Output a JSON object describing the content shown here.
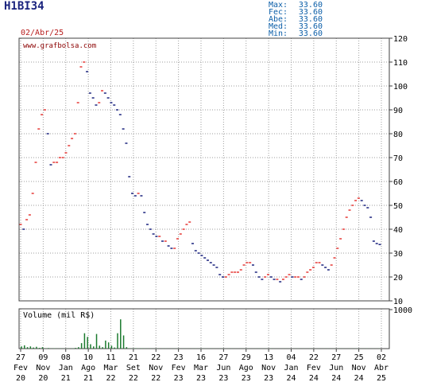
{
  "header": {
    "ticker": "H1BI34",
    "date": "02/Abr/25",
    "stats": [
      {
        "label": "Max:",
        "value": "33.60"
      },
      {
        "label": "Fec:",
        "value": "33.60"
      },
      {
        "label": "Abe:",
        "value": "33.60"
      },
      {
        "label": "Med:",
        "value": "33.60"
      },
      {
        "label": "Min:",
        "value": "33.60"
      }
    ]
  },
  "colors": {
    "up": "#e53935",
    "down": "#1a237e",
    "grid": "#9e9e9e",
    "frame": "#404040",
    "volume": "#1b7a2e",
    "watermark": "#8b0000"
  },
  "chart_data": [
    {
      "type": "line",
      "watermark": "www.grafbolsa.com",
      "ylim": [
        10,
        120
      ],
      "yticks": [
        10,
        20,
        30,
        40,
        50,
        60,
        70,
        80,
        90,
        100,
        110,
        120
      ],
      "grid": true,
      "x_ticks": [
        {
          "top": "27",
          "bottom": "Fev",
          "year": "20"
        },
        {
          "top": "09",
          "bottom": "Nov",
          "year": "20"
        },
        {
          "top": "08",
          "bottom": "Jan",
          "year": "21"
        },
        {
          "top": "10",
          "bottom": "Ago",
          "year": "21"
        },
        {
          "top": "11",
          "bottom": "Mar",
          "year": "22"
        },
        {
          "top": "21",
          "bottom": "Set",
          "year": "22"
        },
        {
          "top": "22",
          "bottom": "Nov",
          "year": "22"
        },
        {
          "top": "23",
          "bottom": "Fev",
          "year": "23"
        },
        {
          "top": "16",
          "bottom": "Mar",
          "year": "23"
        },
        {
          "top": "27",
          "bottom": "Jun",
          "year": "23"
        },
        {
          "top": "29",
          "bottom": "Ago",
          "year": "23"
        },
        {
          "top": "13",
          "bottom": "Nov",
          "year": "23"
        },
        {
          "top": "04",
          "bottom": "Jan",
          "year": "24"
        },
        {
          "top": "22",
          "bottom": "Fev",
          "year": "24"
        },
        {
          "top": "27",
          "bottom": "Jun",
          "year": "24"
        },
        {
          "top": "25",
          "bottom": "Nov",
          "year": "24"
        },
        {
          "top": "02",
          "bottom": "Abr",
          "year": "25"
        }
      ],
      "series": [
        {
          "values": [
            42,
            40,
            44,
            46,
            55,
            68,
            82,
            88,
            90,
            80,
            67,
            68,
            68,
            70,
            70,
            72,
            75,
            78,
            80,
            93,
            108,
            110,
            106,
            97,
            95,
            92,
            93,
            98,
            97,
            95,
            93,
            92,
            90,
            88,
            82,
            76,
            62,
            55,
            54,
            55,
            54,
            47,
            42,
            40,
            38,
            37,
            37,
            35,
            35,
            33,
            32,
            32,
            36,
            38,
            40,
            42,
            43,
            34,
            31,
            30,
            29,
            28,
            27,
            26,
            25,
            24,
            21,
            20,
            20,
            21,
            22,
            22,
            22,
            23,
            25,
            26,
            26,
            25,
            22,
            20,
            19,
            20,
            21,
            20,
            19,
            19,
            18,
            19,
            20,
            21,
            20,
            20,
            20,
            19,
            20,
            22,
            23,
            24,
            26,
            26,
            25,
            24,
            23,
            25,
            28,
            32,
            36,
            40,
            45,
            48,
            50,
            52,
            53,
            52,
            50,
            49,
            45,
            35,
            34,
            33.6
          ]
        }
      ]
    },
    {
      "type": "bar",
      "title": "Volume (mil R$)",
      "ylim": [
        0,
        1000
      ],
      "yticks": [
        1000
      ],
      "values": [
        60,
        90,
        40,
        60,
        30,
        50,
        20,
        40,
        10,
        15,
        5,
        10,
        5,
        8,
        5,
        6,
        5,
        10,
        20,
        40,
        150,
        420,
        320,
        120,
        60,
        400,
        80,
        40,
        220,
        170,
        80,
        30,
        420,
        800,
        360,
        40,
        10,
        8,
        12,
        6,
        10,
        8,
        5,
        6,
        4,
        6,
        4,
        5,
        6,
        3,
        4,
        5,
        4,
        3,
        5,
        4,
        3,
        4,
        6,
        3,
        5,
        4,
        3,
        5,
        4,
        3,
        4,
        5,
        3,
        4,
        5,
        4,
        3,
        4,
        3,
        5,
        4,
        3,
        4,
        5,
        3,
        4,
        3,
        5,
        4,
        3,
        4,
        3,
        5,
        4,
        3,
        4,
        5,
        3,
        4,
        3,
        5,
        4,
        3,
        4,
        3,
        4,
        5,
        3,
        4,
        3,
        5,
        4,
        3,
        4,
        3,
        5,
        4,
        3,
        4,
        5,
        3,
        4,
        3,
        5
      ]
    }
  ]
}
